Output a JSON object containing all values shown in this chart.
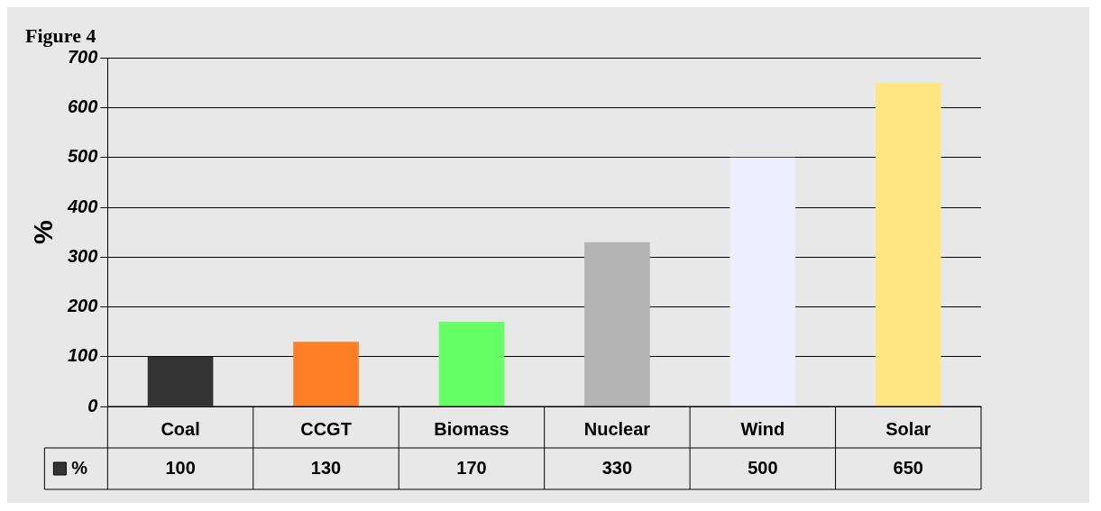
{
  "chart_data": {
    "type": "bar",
    "title": "Figure 4",
    "ylabel": "%",
    "categories": [
      "Coal",
      "CCGT",
      "Biomass",
      "Nuclear",
      "Wind",
      "Solar"
    ],
    "series": [
      {
        "name": "%",
        "color": "#333333",
        "colors": [
          "#333333",
          "#ff7f27",
          "#66ff66",
          "#b4b4b4",
          "#eeeeff",
          "#ffe680"
        ],
        "values": [
          100,
          130,
          170,
          330,
          500,
          650
        ]
      }
    ],
    "ylim": [
      0,
      700
    ],
    "yticks": [
      0,
      100,
      200,
      300,
      400,
      500,
      600,
      700
    ],
    "grid": "y",
    "legend": "bottom left",
    "data_labels": true
  }
}
